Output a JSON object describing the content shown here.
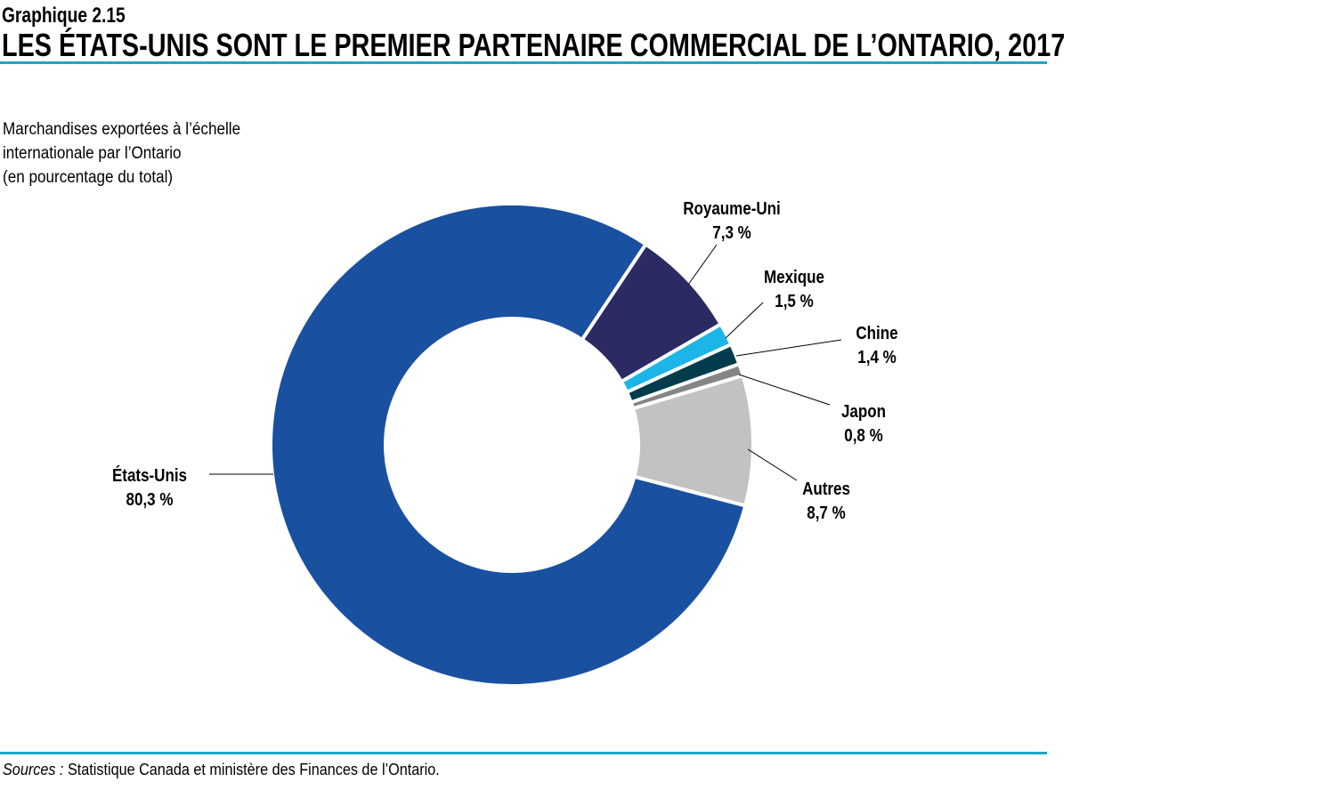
{
  "header": {
    "figure_number": "Graphique 2.15",
    "title": "LES ÉTATS-UNIS SONT LE PREMIER PARTENAIRE COMMERCIAL DE L’ONTARIO, 2017"
  },
  "footer": {
    "sources_label": "Sources :",
    "sources_text": "Statistique Canada et ministère des Finances de l’Ontario."
  },
  "chart_data": {
    "type": "pie",
    "variant": "donut",
    "subtitle": [
      "Marchandises exportées à l’échelle",
      "internationale par l’Ontario",
      "(en pourcentage du total)"
    ],
    "slices": [
      {
        "name": "Royaume-Uni",
        "value": 7.3,
        "label": "7,3 %",
        "color": "#2b2a62"
      },
      {
        "name": "Mexique",
        "value": 1.5,
        "label": "1,5 %",
        "color": "#1db5e8"
      },
      {
        "name": "Chine",
        "value": 1.4,
        "label": "1,4 %",
        "color": "#003c4c"
      },
      {
        "name": "Japon",
        "value": 0.8,
        "label": "0,8 %",
        "color": "#858585"
      },
      {
        "name": "Autres",
        "value": 8.7,
        "label": "8,7 %",
        "color": "#c2c2c2"
      },
      {
        "name": "États-Unis",
        "value": 80.3,
        "label": "80,3 %",
        "color": "#1a50a0"
      }
    ],
    "accent_color": "#1ea6c9"
  }
}
